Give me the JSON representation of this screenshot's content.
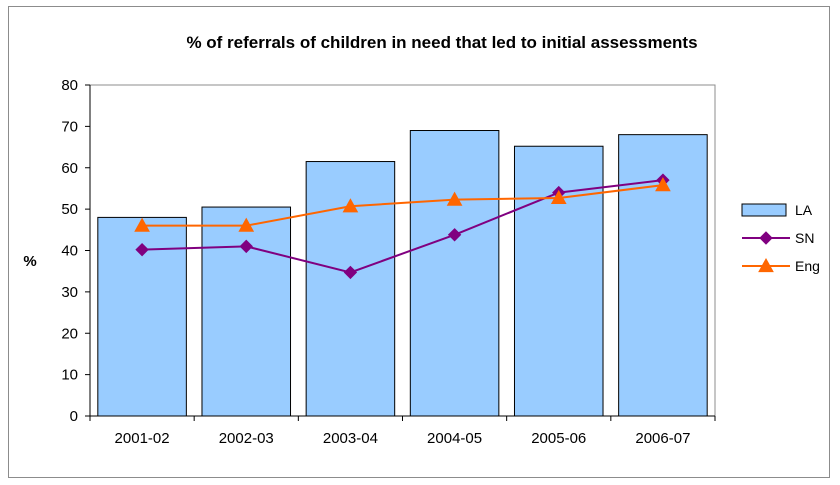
{
  "chart_data": {
    "type": "bar",
    "title": "% of referrals of children in need that led to initial assessments",
    "xlabel": "",
    "ylabel": "%",
    "categories": [
      "2001-02",
      "2002-03",
      "2003-04",
      "2004-05",
      "2005-06",
      "2006-07"
    ],
    "ylim": [
      0,
      80
    ],
    "yticks": [
      0,
      10,
      20,
      30,
      40,
      50,
      60,
      70,
      80
    ],
    "grid": false,
    "legend_position": "right",
    "series": [
      {
        "name": "LA",
        "type": "bar",
        "color": "#99ccff",
        "values": [
          48,
          50.5,
          61.5,
          69,
          65.2,
          68
        ]
      },
      {
        "name": "SN",
        "type": "line",
        "marker": "diamond",
        "color": "#800080",
        "values": [
          40.2,
          41,
          34.7,
          43.8,
          54,
          57
        ]
      },
      {
        "name": "Eng",
        "type": "line",
        "marker": "triangle",
        "color": "#ff6600",
        "values": [
          46,
          46,
          50.7,
          52.3,
          52.7,
          55.8
        ]
      }
    ]
  }
}
